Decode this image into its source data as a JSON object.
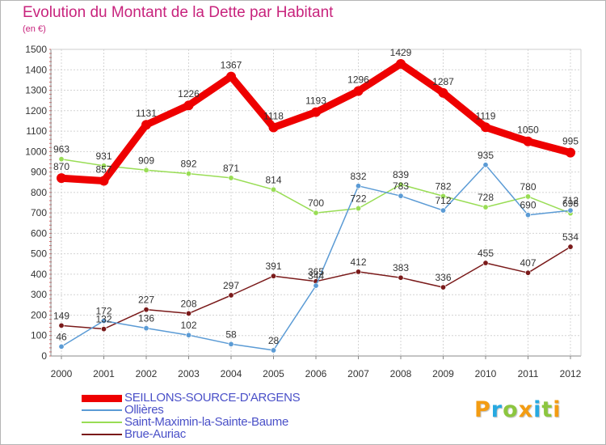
{
  "chart_data": {
    "type": "line",
    "title": "Evolution du Montant de la Dette par Habitant",
    "subtitle": "(en €)",
    "x": [
      "2000",
      "2001",
      "2002",
      "2003",
      "2004",
      "2005",
      "2006",
      "2007",
      "2008",
      "2009",
      "2010",
      "2011",
      "2012"
    ],
    "ylim": [
      0,
      1500
    ],
    "yticks": [
      "0",
      "100",
      "200",
      "300",
      "400",
      "500",
      "600",
      "700",
      "800",
      "900",
      "1000",
      "1100",
      "1200",
      "1300",
      "1400",
      "1500"
    ],
    "grid": true,
    "legend_position": "bottom-left",
    "series": [
      {
        "name": "SEILLONS-SOURCE-D'ARGENS",
        "color": "#ee0000",
        "values": [
          870,
          857,
          1131,
          1226,
          1367,
          1118,
          1193,
          1296,
          1429,
          1287,
          1119,
          1050,
          995
        ],
        "labels": [
          "870",
          "857",
          "1131",
          "1226",
          "1367",
          "1118",
          "1193",
          "1296",
          "1429",
          "1287",
          "1119",
          "1050",
          "995"
        ]
      },
      {
        "name": "Ollières",
        "color": "#5b9bd5",
        "values": [
          46,
          172,
          136,
          102,
          58,
          28,
          344,
          832,
          783,
          712,
          935,
          690,
          712
        ],
        "labels": [
          "46",
          "172",
          "136",
          "102",
          "58",
          "28",
          "344",
          "832",
          "783",
          "712",
          "935",
          "690",
          "712"
        ]
      },
      {
        "name": "Saint-Maximin-la-Sainte-Baume",
        "color": "#99dd55",
        "values": [
          963,
          931,
          909,
          892,
          871,
          814,
          700,
          722,
          839,
          782,
          728,
          780,
          698
        ],
        "labels": [
          "963",
          "931",
          "909",
          "892",
          "871",
          "814",
          "700",
          "722",
          "839",
          "782",
          "728",
          "780",
          "698"
        ]
      },
      {
        "name": "Brue-Auriac",
        "color": "#7a1a1a",
        "values": [
          149,
          132,
          227,
          208,
          297,
          391,
          365,
          412,
          383,
          336,
          455,
          407,
          534
        ],
        "labels": [
          "149",
          "132",
          "227",
          "208",
          "297",
          "391",
          "365",
          "412",
          "383",
          "336",
          "455",
          "407",
          "534"
        ]
      }
    ]
  },
  "logo": {
    "letters": [
      "P",
      "r",
      "o",
      "x",
      "i",
      "t",
      "i"
    ],
    "colors": [
      "#f39c12",
      "#27a9e1",
      "#8cc63f",
      "#f39c12",
      "#27a9e1",
      "#8cc63f",
      "#f39c12"
    ]
  }
}
